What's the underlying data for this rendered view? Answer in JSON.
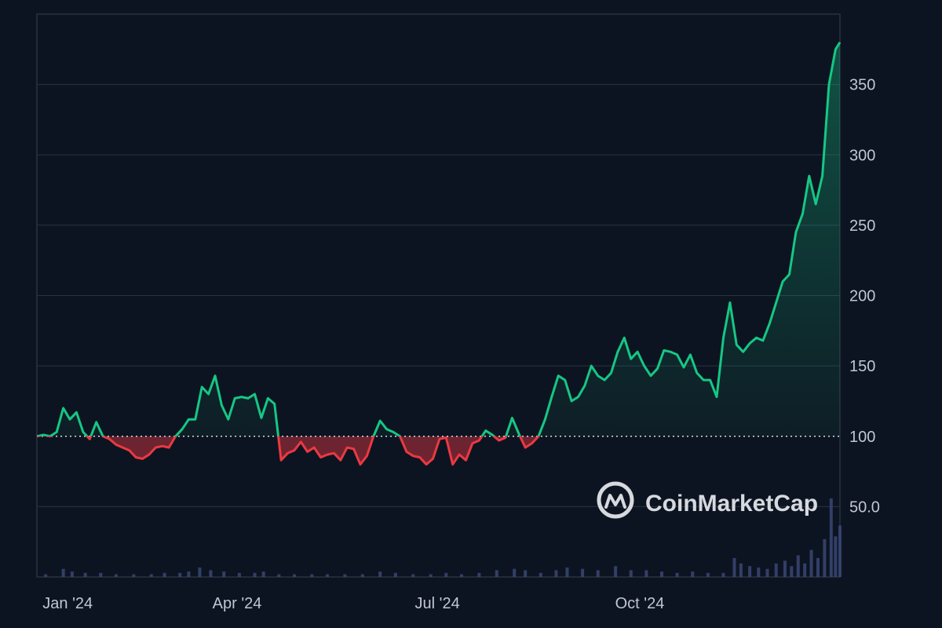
{
  "colors": {
    "background": "#0d1421",
    "grid": "#2a3140",
    "baseline": "#d6dbe3",
    "up_line": "#16c784",
    "down_line": "#ea3943",
    "up_fill": "#16c784",
    "down_fill": "#ea3943",
    "volume": "#3a4674",
    "axis_text": "#c0c6d2"
  },
  "watermark": {
    "text": "CoinMarketCap",
    "icon": "coinmarketcap-logo-icon"
  },
  "chart_data": {
    "type": "line",
    "title": "",
    "baseline": 100,
    "ylim": [
      0,
      400
    ],
    "yticks": [
      {
        "value": 50,
        "label": "50.0"
      },
      {
        "value": 100,
        "label": "100"
      },
      {
        "value": 150,
        "label": "150"
      },
      {
        "value": 200,
        "label": "200"
      },
      {
        "value": 250,
        "label": "250"
      },
      {
        "value": 300,
        "label": "300"
      },
      {
        "value": 350,
        "label": "350"
      }
    ],
    "xrange": [
      "2024-01-01",
      "2024-12-31"
    ],
    "xticks": [
      {
        "date": "2024-01-15",
        "label": "Jan '24"
      },
      {
        "date": "2024-04-01",
        "label": "Apr '24"
      },
      {
        "date": "2024-07-01",
        "label": "Jul '24"
      },
      {
        "date": "2024-10-01",
        "label": "Oct '24"
      }
    ],
    "grid": true,
    "series": [
      {
        "x": [
          "2024-01-01",
          "2024-01-04",
          "2024-01-07",
          "2024-01-10",
          "2024-01-13",
          "2024-01-16",
          "2024-01-19",
          "2024-01-22",
          "2024-01-25",
          "2024-01-28",
          "2024-01-31",
          "2024-02-03",
          "2024-02-06",
          "2024-02-09",
          "2024-02-12",
          "2024-02-15",
          "2024-02-18",
          "2024-02-21",
          "2024-02-24",
          "2024-02-27",
          "2024-03-01",
          "2024-03-04",
          "2024-03-07",
          "2024-03-10",
          "2024-03-13",
          "2024-03-16",
          "2024-03-19",
          "2024-03-22",
          "2024-03-25",
          "2024-03-28",
          "2024-03-31",
          "2024-04-03",
          "2024-04-06",
          "2024-04-09",
          "2024-04-12",
          "2024-04-15",
          "2024-04-18",
          "2024-04-21",
          "2024-04-24",
          "2024-04-27",
          "2024-04-30",
          "2024-05-03",
          "2024-05-06",
          "2024-05-09",
          "2024-05-12",
          "2024-05-15",
          "2024-05-18",
          "2024-05-21",
          "2024-05-24",
          "2024-05-27",
          "2024-05-30",
          "2024-06-02",
          "2024-06-05",
          "2024-06-08",
          "2024-06-11",
          "2024-06-14",
          "2024-06-17",
          "2024-06-20",
          "2024-06-23",
          "2024-06-26",
          "2024-06-29",
          "2024-07-02",
          "2024-07-05",
          "2024-07-08",
          "2024-07-11",
          "2024-07-14",
          "2024-07-17",
          "2024-07-20",
          "2024-07-23",
          "2024-07-26",
          "2024-07-29",
          "2024-08-01",
          "2024-08-04",
          "2024-08-07",
          "2024-08-10",
          "2024-08-13",
          "2024-08-16",
          "2024-08-19",
          "2024-08-22",
          "2024-08-25",
          "2024-08-28",
          "2024-08-31",
          "2024-09-03",
          "2024-09-06",
          "2024-09-09",
          "2024-09-12",
          "2024-09-15",
          "2024-09-18",
          "2024-09-21",
          "2024-09-24",
          "2024-09-27",
          "2024-09-30",
          "2024-10-03",
          "2024-10-06",
          "2024-10-09",
          "2024-10-12",
          "2024-10-15",
          "2024-10-18",
          "2024-10-21",
          "2024-10-24",
          "2024-10-27",
          "2024-10-30",
          "2024-11-02",
          "2024-11-05",
          "2024-11-08",
          "2024-11-11",
          "2024-11-14",
          "2024-11-17",
          "2024-11-20",
          "2024-11-23",
          "2024-11-26",
          "2024-11-29",
          "2024-12-02",
          "2024-12-05",
          "2024-12-08",
          "2024-12-11",
          "2024-12-14",
          "2024-12-17",
          "2024-12-20",
          "2024-12-23",
          "2024-12-26",
          "2024-12-29",
          "2024-12-31"
        ],
        "y": [
          100,
          101,
          100,
          103,
          120,
          112,
          117,
          103,
          98,
          110,
          100,
          98,
          94,
          92,
          90,
          85,
          84,
          87,
          92,
          93,
          92,
          100,
          105,
          112,
          112,
          135,
          130,
          143,
          122,
          112,
          127,
          128,
          127,
          130,
          113,
          127,
          123,
          83,
          88,
          90,
          96,
          89,
          92,
          85,
          87,
          88,
          83,
          92,
          91,
          80,
          86,
          100,
          111,
          105,
          103,
          100,
          89,
          86,
          85,
          80,
          84,
          98,
          99,
          80,
          87,
          83,
          95,
          97,
          104,
          101,
          97,
          99,
          113,
          102,
          92,
          95,
          100,
          112,
          128,
          143,
          140,
          125,
          128,
          136,
          150,
          143,
          140,
          145,
          160,
          170,
          155,
          160,
          150,
          143,
          148,
          161,
          160,
          158,
          149,
          158,
          145,
          140,
          140,
          128,
          170,
          195,
          165,
          160,
          166,
          170,
          168,
          180,
          195,
          210,
          215,
          245,
          258,
          285,
          265,
          285,
          350,
          375,
          380
        ]
      }
    ],
    "volume": [
      {
        "x": "2024-01-05",
        "v": 2
      },
      {
        "x": "2024-01-13",
        "v": 6
      },
      {
        "x": "2024-01-17",
        "v": 4
      },
      {
        "x": "2024-01-23",
        "v": 3
      },
      {
        "x": "2024-01-30",
        "v": 3
      },
      {
        "x": "2024-02-06",
        "v": 2
      },
      {
        "x": "2024-02-14",
        "v": 2
      },
      {
        "x": "2024-02-22",
        "v": 2
      },
      {
        "x": "2024-02-28",
        "v": 3
      },
      {
        "x": "2024-03-06",
        "v": 3
      },
      {
        "x": "2024-03-10",
        "v": 4
      },
      {
        "x": "2024-03-15",
        "v": 7
      },
      {
        "x": "2024-03-20",
        "v": 5
      },
      {
        "x": "2024-03-26",
        "v": 4
      },
      {
        "x": "2024-04-02",
        "v": 3
      },
      {
        "x": "2024-04-09",
        "v": 3
      },
      {
        "x": "2024-04-13",
        "v": 4
      },
      {
        "x": "2024-04-20",
        "v": 2
      },
      {
        "x": "2024-04-27",
        "v": 2
      },
      {
        "x": "2024-05-05",
        "v": 2
      },
      {
        "x": "2024-05-12",
        "v": 2
      },
      {
        "x": "2024-05-20",
        "v": 2
      },
      {
        "x": "2024-05-28",
        "v": 2
      },
      {
        "x": "2024-06-05",
        "v": 4
      },
      {
        "x": "2024-06-12",
        "v": 3
      },
      {
        "x": "2024-06-20",
        "v": 2
      },
      {
        "x": "2024-06-28",
        "v": 2
      },
      {
        "x": "2024-07-05",
        "v": 3
      },
      {
        "x": "2024-07-12",
        "v": 2
      },
      {
        "x": "2024-07-20",
        "v": 3
      },
      {
        "x": "2024-07-28",
        "v": 5
      },
      {
        "x": "2024-08-05",
        "v": 6
      },
      {
        "x": "2024-08-10",
        "v": 5
      },
      {
        "x": "2024-08-17",
        "v": 3
      },
      {
        "x": "2024-08-24",
        "v": 5
      },
      {
        "x": "2024-08-29",
        "v": 7
      },
      {
        "x": "2024-09-05",
        "v": 6
      },
      {
        "x": "2024-09-12",
        "v": 5
      },
      {
        "x": "2024-09-20",
        "v": 8
      },
      {
        "x": "2024-09-27",
        "v": 5
      },
      {
        "x": "2024-10-04",
        "v": 5
      },
      {
        "x": "2024-10-11",
        "v": 4
      },
      {
        "x": "2024-10-18",
        "v": 3
      },
      {
        "x": "2024-10-25",
        "v": 4
      },
      {
        "x": "2024-11-01",
        "v": 3
      },
      {
        "x": "2024-11-08",
        "v": 3
      },
      {
        "x": "2024-11-13",
        "v": 14
      },
      {
        "x": "2024-11-16",
        "v": 10
      },
      {
        "x": "2024-11-20",
        "v": 8
      },
      {
        "x": "2024-11-24",
        "v": 7
      },
      {
        "x": "2024-11-28",
        "v": 6
      },
      {
        "x": "2024-12-02",
        "v": 10
      },
      {
        "x": "2024-12-06",
        "v": 12
      },
      {
        "x": "2024-12-09",
        "v": 8
      },
      {
        "x": "2024-12-12",
        "v": 16
      },
      {
        "x": "2024-12-15",
        "v": 10
      },
      {
        "x": "2024-12-18",
        "v": 20
      },
      {
        "x": "2024-12-21",
        "v": 14
      },
      {
        "x": "2024-12-24",
        "v": 28
      },
      {
        "x": "2024-12-27",
        "v": 58
      },
      {
        "x": "2024-12-29",
        "v": 30
      },
      {
        "x": "2024-12-31",
        "v": 38
      }
    ]
  }
}
